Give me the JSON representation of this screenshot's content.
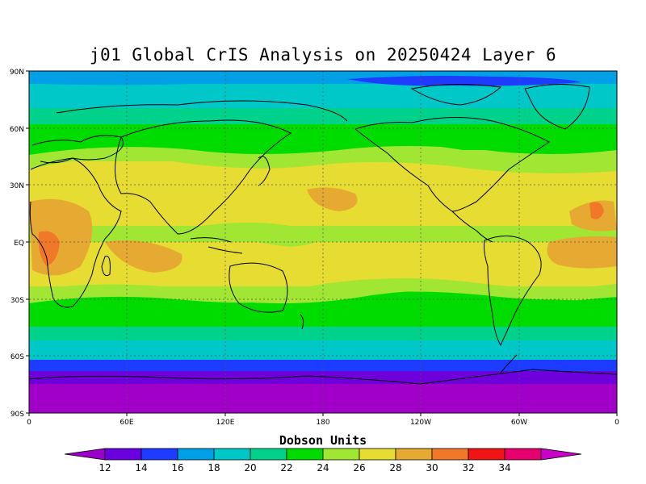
{
  "title": "j01 Global CrIS Analysis on 20250424 Layer 6",
  "lat_labels": [
    "90N",
    "60N",
    "30N",
    "EQ",
    "30S",
    "60S",
    "90S"
  ],
  "lon_labels": [
    "0",
    "60E",
    "120E",
    "180",
    "120W",
    "60W",
    "0"
  ],
  "colorbar": {
    "title": "Dobson Units",
    "labels": [
      "12",
      "14",
      "16",
      "18",
      "20",
      "22",
      "24",
      "26",
      "28",
      "30",
      "32",
      "34"
    ],
    "colors": [
      "#9a00c8",
      "#6a00e0",
      "#1e3cff",
      "#00a0e6",
      "#00c8c8",
      "#00d28c",
      "#00dc00",
      "#a0e632",
      "#e6dc32",
      "#e6aa32",
      "#f07828",
      "#f01414",
      "#e6006e",
      "#c800c8"
    ]
  },
  "layer_colors": {
    "v12": "#a000c8",
    "v14": "#6e00dc",
    "v16": "#1e3cff",
    "v18": "#00a0e6",
    "v20": "#00c8c8",
    "v22": "#00d28c",
    "v24": "#00dc00",
    "v26": "#a0e632",
    "v28": "#e6dc32",
    "v30": "#e6aa32",
    "v32": "#f07828"
  }
}
